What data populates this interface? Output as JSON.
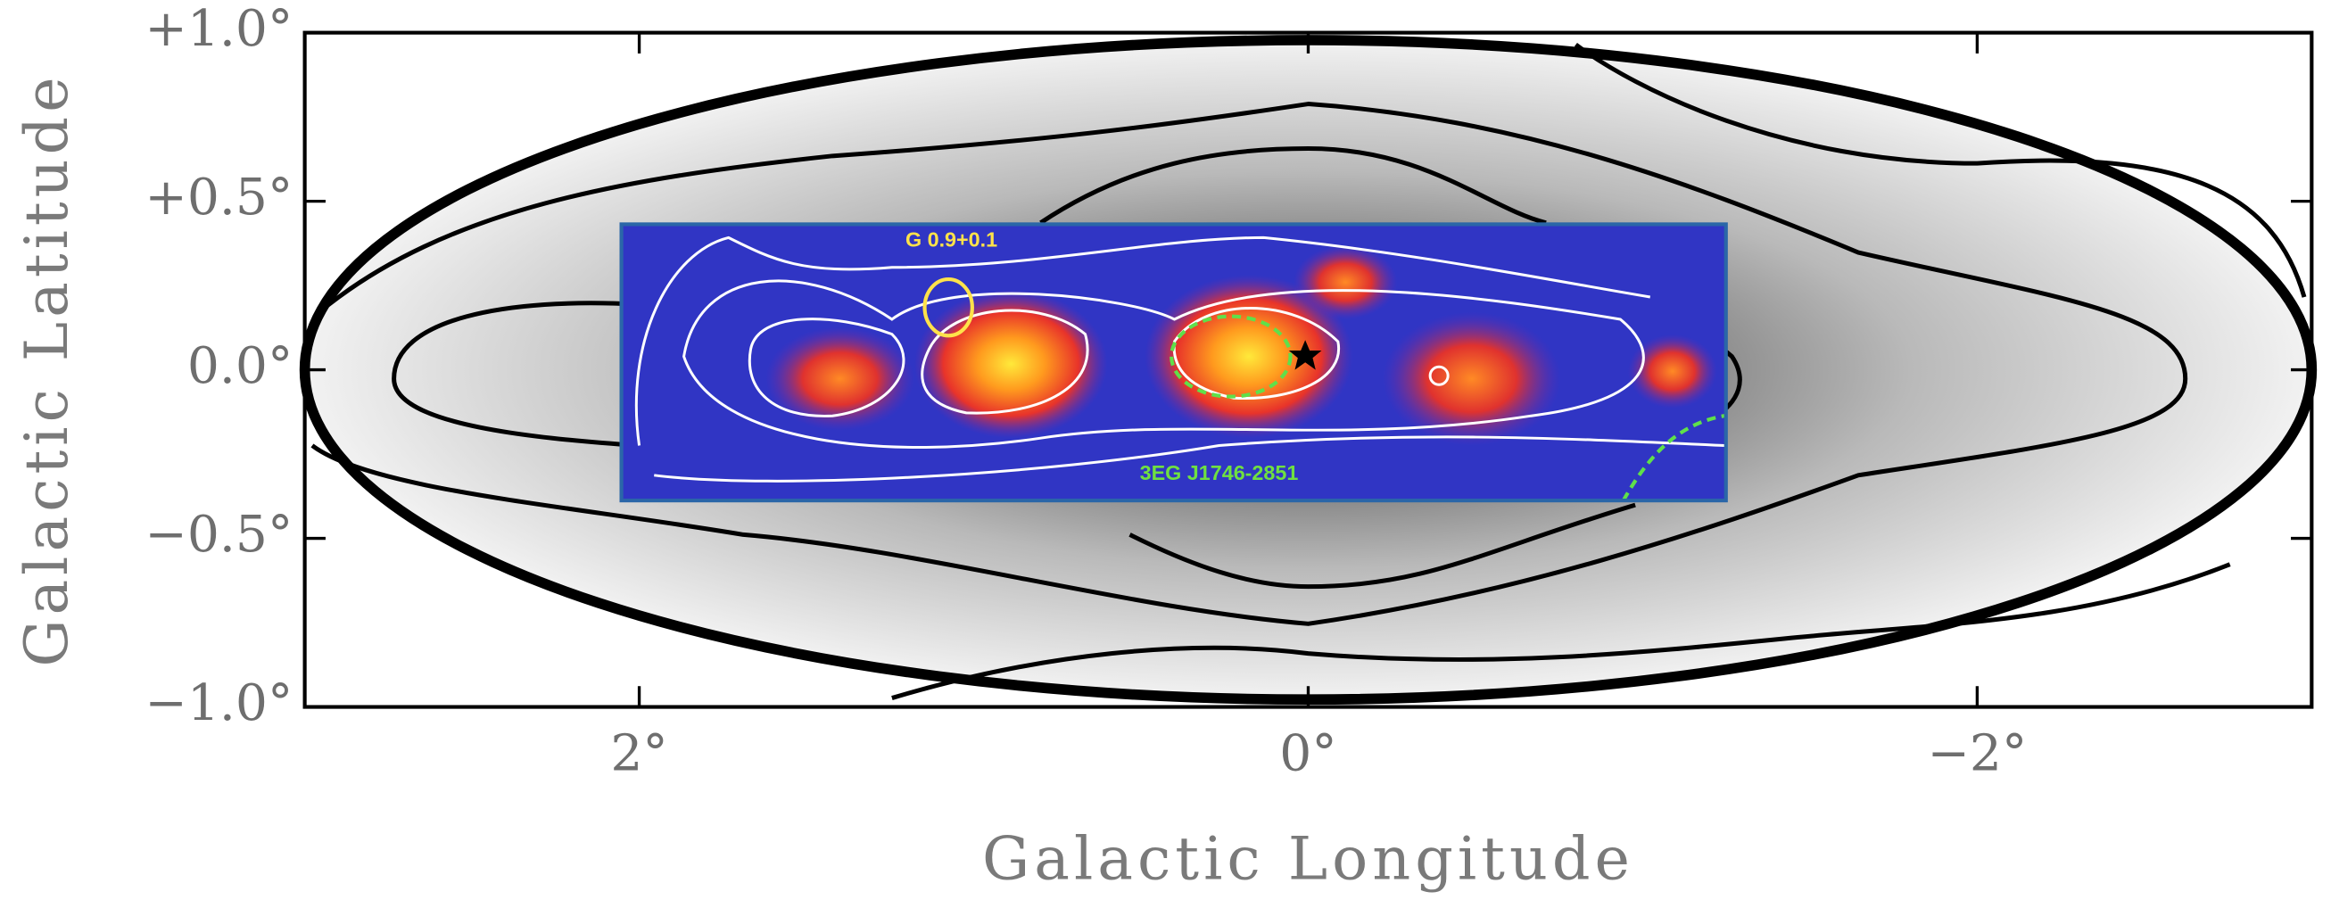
{
  "chart_data": {
    "type": "map",
    "x_label": "Galactic Longitude",
    "y_label": "Galactic Latitude",
    "xlim": [
      3,
      -3
    ],
    "ylim": [
      -1,
      1
    ],
    "xticks": [
      {
        "value": 2,
        "label": "2°"
      },
      {
        "value": 0,
        "label": "0°"
      },
      {
        "value": -2,
        "label": "−2°"
      }
    ],
    "yticks": [
      {
        "value": 1,
        "label": "+1.0°"
      },
      {
        "value": 0.5,
        "label": "+0.5°"
      },
      {
        "value": 0,
        "label": "0.0°"
      },
      {
        "value": -0.5,
        "label": "−0.5°"
      },
      {
        "value": -1,
        "label": "−1.0°"
      }
    ],
    "annotations": [
      "G 0.9+0.1",
      "3EG J1746-2851"
    ]
  }
}
